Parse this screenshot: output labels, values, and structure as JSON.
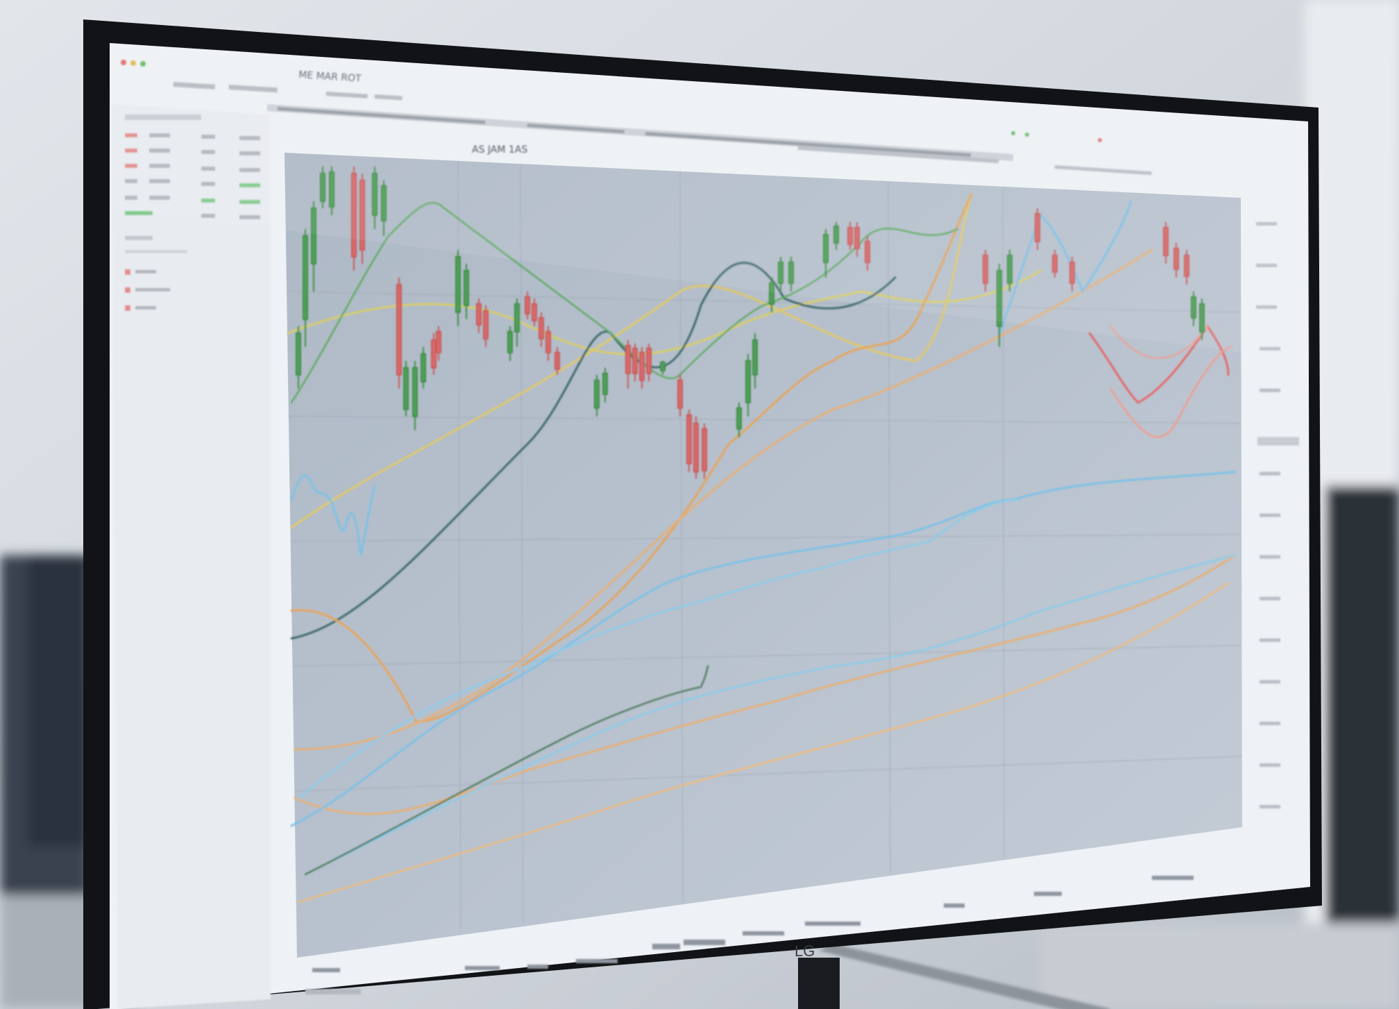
{
  "photo": {
    "subject": "computer monitor displaying trading software",
    "screen_text": {
      "top_header": "ME MAR ROT",
      "chart_title": "AS JAM 1AS",
      "bezel_logo": "LG"
    }
  },
  "colors": {
    "wall": "#d6dbe2",
    "bezel": "#0f1114",
    "screen_bg": "#eef1f5",
    "chart_bg": "#b9c3cf",
    "line_green": "#55a35c",
    "line_orange": "#e6a45d",
    "line_yellow": "#d8cd6a",
    "line_blue": "#7ec1e6",
    "line_red": "#e26b6b",
    "line_dark": "#3f6a6c"
  },
  "icons": {
    "window_controls": "window-controls-icon",
    "sidebar_dots": "list-dot-icon"
  }
}
